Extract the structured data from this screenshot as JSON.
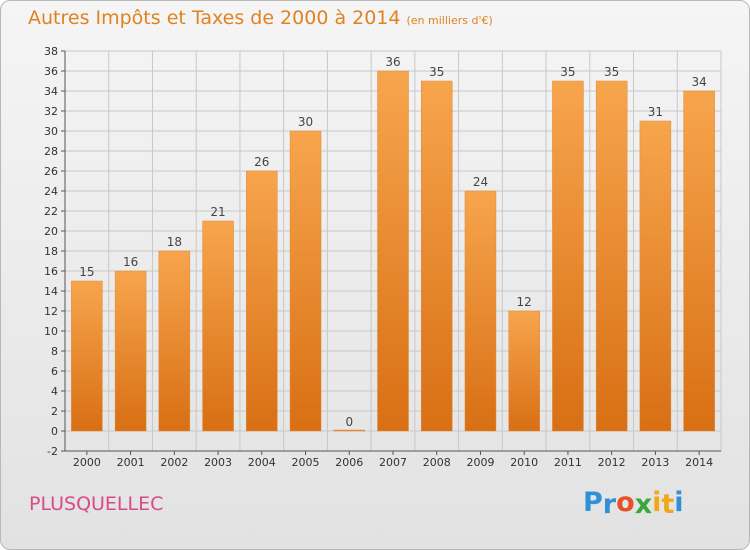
{
  "header": {
    "title": "Autres Impôts et Taxes de 2000 à 2014",
    "unit": "(en milliers d'€)"
  },
  "footer": {
    "commune": "PLUSQUELLEC",
    "logo_letters": [
      "P",
      "r",
      "o",
      "x",
      "i",
      "t",
      "i"
    ],
    "logo_colors": [
      "#2f8fd8",
      "#2f8fd8",
      "#e8502a",
      "#3aa83a",
      "#f0a818",
      "#f0a818",
      "#2f8fd8"
    ]
  },
  "colors": {
    "bar_top": "#f7a54d",
    "bar_bottom": "#d86f14",
    "title": "#e0821f"
  },
  "chart_data": {
    "type": "bar",
    "title": "Autres Impôts et Taxes de 2000 à 2014",
    "subtitle": "(en milliers d'€)",
    "categories": [
      "2000",
      "2001",
      "2002",
      "2003",
      "2004",
      "2005",
      "2006",
      "2007",
      "2008",
      "2009",
      "2010",
      "2011",
      "2012",
      "2013",
      "2014"
    ],
    "values": [
      15,
      16,
      18,
      21,
      26,
      30,
      0,
      36,
      35,
      24,
      12,
      35,
      35,
      31,
      34
    ],
    "ylim": [
      -2,
      38
    ],
    "yticks": [
      -2,
      0,
      2,
      4,
      6,
      8,
      10,
      12,
      14,
      16,
      18,
      20,
      22,
      24,
      26,
      28,
      30,
      32,
      34,
      36,
      38
    ],
    "grid": true,
    "legend": "none"
  }
}
